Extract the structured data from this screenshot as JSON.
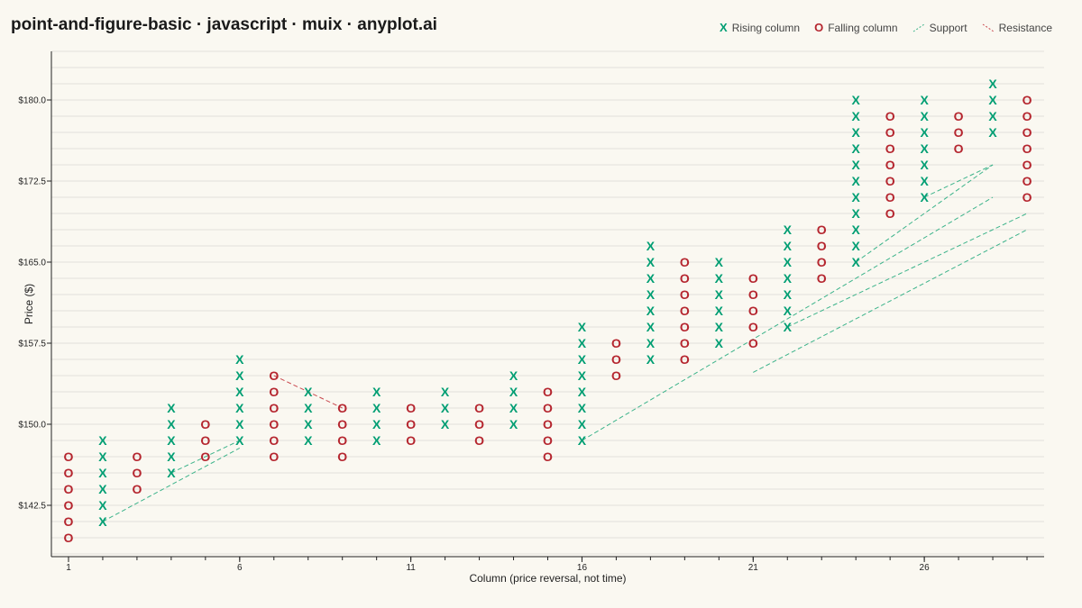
{
  "title": "point-and-figure-basic · javascript · muix · anyplot.ai",
  "legend": {
    "rising": {
      "symbol": "X",
      "label": "Rising column"
    },
    "falling": {
      "symbol": "O",
      "label": "Falling column"
    },
    "support": {
      "label": "Support"
    },
    "resistance": {
      "label": "Resistance"
    }
  },
  "colors": {
    "background": "#faf8f1",
    "rising": "#009e73",
    "falling": "#b5262f",
    "support": "#3cb38a",
    "resistance": "#c9494f",
    "grid": "#e2e0da",
    "axis": "#222222"
  },
  "chart_data": {
    "type": "point-and-figure",
    "xlabel": "Column (price reversal, not time)",
    "ylabel": "Price ($)",
    "xlim": [
      0.5,
      29.5
    ],
    "ylim": [
      137.75,
      184.5
    ],
    "box_size": 1.5,
    "x_ticks": [
      1,
      6,
      11,
      16,
      21,
      26
    ],
    "x_tick_labels": [
      "1",
      "6",
      "11",
      "16",
      "21",
      "26"
    ],
    "y_ticks": [
      142.5,
      150.0,
      157.5,
      165.0,
      172.5,
      180.0
    ],
    "y_tick_labels": [
      "$142.5",
      "$150.0",
      "$157.5",
      "$165.0",
      "$172.5",
      "$180.0"
    ],
    "grid": true,
    "legend_position": "top-right",
    "columns": [
      {
        "col": 1,
        "type": "O",
        "low": 139.5,
        "high": 147.0
      },
      {
        "col": 2,
        "type": "X",
        "low": 141.0,
        "high": 148.5
      },
      {
        "col": 3,
        "type": "O",
        "low": 144.0,
        "high": 147.0
      },
      {
        "col": 4,
        "type": "X",
        "low": 145.5,
        "high": 151.5
      },
      {
        "col": 5,
        "type": "O",
        "low": 147.0,
        "high": 150.0
      },
      {
        "col": 6,
        "type": "X",
        "low": 148.5,
        "high": 156.0
      },
      {
        "col": 7,
        "type": "O",
        "low": 147.0,
        "high": 154.5
      },
      {
        "col": 8,
        "type": "X",
        "low": 148.5,
        "high": 153.0
      },
      {
        "col": 9,
        "type": "O",
        "low": 147.0,
        "high": 151.5
      },
      {
        "col": 10,
        "type": "X",
        "low": 148.5,
        "high": 153.0
      },
      {
        "col": 11,
        "type": "O",
        "low": 148.5,
        "high": 151.5
      },
      {
        "col": 12,
        "type": "X",
        "low": 150.0,
        "high": 153.0
      },
      {
        "col": 13,
        "type": "O",
        "low": 148.5,
        "high": 151.5
      },
      {
        "col": 14,
        "type": "X",
        "low": 150.0,
        "high": 154.5
      },
      {
        "col": 15,
        "type": "O",
        "low": 147.0,
        "high": 153.0
      },
      {
        "col": 16,
        "type": "X",
        "low": 148.5,
        "high": 159.0
      },
      {
        "col": 17,
        "type": "O",
        "low": 154.5,
        "high": 157.5
      },
      {
        "col": 18,
        "type": "X",
        "low": 156.0,
        "high": 166.5
      },
      {
        "col": 19,
        "type": "O",
        "low": 156.0,
        "high": 165.0
      },
      {
        "col": 20,
        "type": "X",
        "low": 157.5,
        "high": 165.0
      },
      {
        "col": 21,
        "type": "O",
        "low": 157.5,
        "high": 163.5
      },
      {
        "col": 22,
        "type": "X",
        "low": 159.0,
        "high": 168.0
      },
      {
        "col": 23,
        "type": "O",
        "low": 163.5,
        "high": 168.0
      },
      {
        "col": 24,
        "type": "X",
        "low": 165.0,
        "high": 180.0
      },
      {
        "col": 25,
        "type": "O",
        "low": 169.5,
        "high": 178.5
      },
      {
        "col": 26,
        "type": "X",
        "low": 171.0,
        "high": 180.0
      },
      {
        "col": 27,
        "type": "O",
        "low": 175.5,
        "high": 178.5
      },
      {
        "col": 28,
        "type": "X",
        "low": 177.0,
        "high": 181.5
      },
      {
        "col": 29,
        "type": "O",
        "low": 171.0,
        "high": 180.0
      }
    ],
    "trend_lines": [
      {
        "type": "support",
        "x1": 2,
        "y1": 141.0,
        "x2": 6,
        "y2": 147.8
      },
      {
        "type": "support",
        "x1": 4,
        "y1": 145.5,
        "x2": 6,
        "y2": 148.5
      },
      {
        "type": "resistance",
        "x1": 7,
        "y1": 154.5,
        "x2": 9,
        "y2": 151.5
      },
      {
        "type": "support",
        "x1": 16,
        "y1": 148.5,
        "x2": 28,
        "y2": 171.0
      },
      {
        "type": "support",
        "x1": 21,
        "y1": 154.8,
        "x2": 29,
        "y2": 168.0
      },
      {
        "type": "support",
        "x1": 22,
        "y1": 159.0,
        "x2": 29,
        "y2": 169.5
      },
      {
        "type": "support",
        "x1": 24,
        "y1": 165.0,
        "x2": 28,
        "y2": 174.0
      },
      {
        "type": "support",
        "x1": 26,
        "y1": 171.0,
        "x2": 28,
        "y2": 174.0
      }
    ]
  }
}
